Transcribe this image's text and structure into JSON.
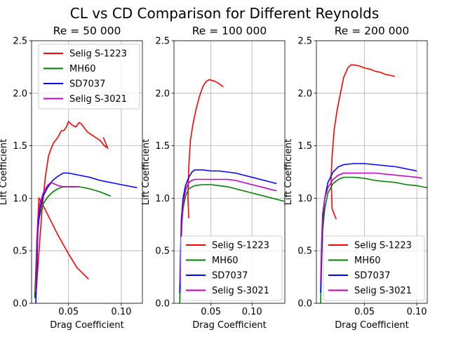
{
  "title": "CL vs CD Comparison for Different Reynolds",
  "colors": {
    "Selig S-1223": "#ff0000",
    "MH60": "#008000",
    "SD7037": "#0000ff",
    "Selig S-3021": "#bf00bf"
  },
  "chart_data": [
    {
      "type": "line",
      "title": "Re = 50 000",
      "xlabel": "Drag Coefficient",
      "ylabel": "Lift Coefficient",
      "xlim": [
        0.015,
        0.12
      ],
      "ylim": [
        0.0,
        2.5
      ],
      "xticks": [
        0.05,
        0.1
      ],
      "xtick_labels": [
        "0.05",
        "0.10"
      ],
      "yticks": [
        0.0,
        0.5,
        1.0,
        1.5,
        2.0,
        2.5
      ],
      "ytick_labels": [
        "0.0",
        "0.5",
        "1.0",
        "1.5",
        "2.0",
        "2.5"
      ],
      "grid": true,
      "legend_position": "top-right",
      "series": [
        {
          "name": "Selig S-1223",
          "x": [
            0.069,
            0.062,
            0.058,
            0.05,
            0.04,
            0.03,
            0.025,
            0.022,
            0.02,
            0.019,
            0.021,
            0.025,
            0.028,
            0.031,
            0.033,
            0.036,
            0.04,
            0.043,
            0.046,
            0.048,
            0.05,
            0.053,
            0.057,
            0.06,
            0.062,
            0.065,
            0.068,
            0.08,
            0.084,
            0.087,
            0.085,
            0.083
          ],
          "y": [
            0.23,
            0.3,
            0.34,
            0.47,
            0.65,
            0.85,
            0.95,
            1.0,
            0.6,
            0.05,
            0.35,
            0.9,
            1.2,
            1.4,
            1.46,
            1.53,
            1.58,
            1.64,
            1.65,
            1.68,
            1.73,
            1.7,
            1.68,
            1.72,
            1.71,
            1.67,
            1.63,
            1.55,
            1.5,
            1.48,
            1.53,
            1.58
          ]
        },
        {
          "name": "MH60",
          "x": [
            0.018,
            0.019,
            0.02,
            0.022,
            0.025,
            0.03,
            0.035,
            0.04,
            0.045,
            0.05,
            0.055,
            0.06,
            0.07,
            0.08,
            0.09
          ],
          "y": [
            0.05,
            0.3,
            0.6,
            0.8,
            0.93,
            1.01,
            1.06,
            1.09,
            1.11,
            1.11,
            1.11,
            1.11,
            1.09,
            1.06,
            1.02
          ]
        },
        {
          "name": "SD7037",
          "x": [
            0.019,
            0.02,
            0.021,
            0.023,
            0.026,
            0.03,
            0.035,
            0.04,
            0.045,
            0.05,
            0.06,
            0.07,
            0.08,
            0.09,
            0.1,
            0.115
          ],
          "y": [
            0.0,
            0.3,
            0.7,
            0.9,
            1.02,
            1.1,
            1.17,
            1.21,
            1.24,
            1.24,
            1.22,
            1.2,
            1.17,
            1.15,
            1.13,
            1.1
          ]
        },
        {
          "name": "Selig S-3021",
          "x": [
            0.019,
            0.02,
            0.021,
            0.023,
            0.026,
            0.03,
            0.033,
            0.036,
            0.04,
            0.045,
            0.05,
            0.055,
            0.06
          ],
          "y": [
            0.1,
            0.5,
            0.8,
            0.95,
            1.05,
            1.12,
            1.15,
            1.14,
            1.12,
            1.11,
            1.11,
            1.11,
            1.11
          ]
        }
      ]
    },
    {
      "type": "line",
      "title": "Re = 100 000",
      "xlabel": "Drag Coefficient",
      "ylabel": "Lift Coefficient",
      "xlim": [
        0.005,
        0.14
      ],
      "ylim": [
        0.0,
        2.5
      ],
      "xticks": [
        0.05,
        0.1
      ],
      "xtick_labels": [
        "0.05",
        "0.10"
      ],
      "yticks": [
        0.0,
        0.5,
        1.0,
        1.5,
        2.0,
        2.5
      ],
      "ytick_labels": [
        "0.0",
        "0.5",
        "1.0",
        "1.5",
        "2.0",
        "2.5"
      ],
      "grid": true,
      "legend_position": "bottom-right",
      "series": [
        {
          "name": "Selig S-1223",
          "x": [
            0.023,
            0.022,
            0.023,
            0.025,
            0.028,
            0.032,
            0.036,
            0.04,
            0.044,
            0.048,
            0.052,
            0.056,
            0.06,
            0.065
          ],
          "y": [
            0.81,
            1.0,
            1.3,
            1.55,
            1.7,
            1.85,
            1.97,
            2.06,
            2.11,
            2.13,
            2.12,
            2.11,
            2.09,
            2.06
          ]
        },
        {
          "name": "MH60",
          "x": [
            0.012,
            0.013,
            0.014,
            0.016,
            0.019,
            0.023,
            0.03,
            0.04,
            0.05,
            0.06,
            0.07,
            0.08,
            0.09,
            0.1,
            0.11,
            0.12,
            0.13,
            0.14
          ],
          "y": [
            0.0,
            0.4,
            0.7,
            0.9,
            1.02,
            1.09,
            1.12,
            1.13,
            1.13,
            1.12,
            1.11,
            1.09,
            1.07,
            1.05,
            1.03,
            1.01,
            0.99,
            0.97
          ]
        },
        {
          "name": "SD7037",
          "x": [
            0.012,
            0.013,
            0.014,
            0.016,
            0.019,
            0.023,
            0.027,
            0.03,
            0.04,
            0.05,
            0.06,
            0.07,
            0.08,
            0.09,
            0.1,
            0.11,
            0.12,
            0.13
          ],
          "y": [
            0.1,
            0.5,
            0.8,
            1.0,
            1.12,
            1.2,
            1.25,
            1.27,
            1.27,
            1.26,
            1.26,
            1.25,
            1.24,
            1.22,
            1.2,
            1.18,
            1.16,
            1.14
          ]
        },
        {
          "name": "Selig S-3021",
          "x": [
            0.013,
            0.014,
            0.015,
            0.017,
            0.02,
            0.023,
            0.027,
            0.03,
            0.04,
            0.05,
            0.06,
            0.07,
            0.08,
            0.09,
            0.1,
            0.11,
            0.12,
            0.13
          ],
          "y": [
            0.2,
            0.6,
            0.85,
            1.0,
            1.1,
            1.15,
            1.17,
            1.18,
            1.18,
            1.18,
            1.18,
            1.18,
            1.17,
            1.15,
            1.13,
            1.11,
            1.09,
            1.07
          ]
        }
      ]
    },
    {
      "type": "line",
      "title": "Re = 200 000",
      "xlabel": "Drag Coefficient",
      "ylabel": "Lift Coefficient",
      "xlim": [
        0.004,
        0.11
      ],
      "ylim": [
        0.0,
        2.5
      ],
      "xticks": [
        0.05,
        0.1
      ],
      "xtick_labels": [
        "0.05",
        "0.10"
      ],
      "yticks": [
        0.0,
        0.5,
        1.0,
        1.5,
        2.0,
        2.5
      ],
      "ytick_labels": [
        "0.0",
        "0.5",
        "1.0",
        "1.5",
        "2.0",
        "2.5"
      ],
      "grid": true,
      "legend_position": "bottom-right",
      "series": [
        {
          "name": "Selig S-1223",
          "x": [
            0.023,
            0.021,
            0.019,
            0.018,
            0.019,
            0.021,
            0.024,
            0.027,
            0.03,
            0.034,
            0.037,
            0.04,
            0.045,
            0.05,
            0.055,
            0.06,
            0.065,
            0.07,
            0.075,
            0.079
          ],
          "y": [
            0.8,
            0.85,
            0.9,
            1.2,
            1.4,
            1.65,
            1.85,
            2.0,
            2.15,
            2.24,
            2.27,
            2.27,
            2.26,
            2.24,
            2.23,
            2.21,
            2.2,
            2.18,
            2.17,
            2.16
          ]
        },
        {
          "name": "MH60",
          "x": [
            0.008,
            0.009,
            0.01,
            0.012,
            0.015,
            0.02,
            0.025,
            0.03,
            0.04,
            0.05,
            0.06,
            0.07,
            0.08,
            0.09,
            0.1,
            0.11
          ],
          "y": [
            0.0,
            0.4,
            0.7,
            0.9,
            1.05,
            1.14,
            1.18,
            1.2,
            1.2,
            1.19,
            1.17,
            1.16,
            1.15,
            1.13,
            1.12,
            1.1
          ]
        },
        {
          "name": "SD7037",
          "x": [
            0.008,
            0.009,
            0.01,
            0.012,
            0.015,
            0.02,
            0.025,
            0.03,
            0.04,
            0.05,
            0.06,
            0.07,
            0.08,
            0.09,
            0.1
          ],
          "y": [
            0.1,
            0.5,
            0.8,
            1.0,
            1.15,
            1.25,
            1.3,
            1.32,
            1.33,
            1.33,
            1.32,
            1.31,
            1.3,
            1.28,
            1.26
          ]
        },
        {
          "name": "Selig S-3021",
          "x": [
            0.008,
            0.009,
            0.01,
            0.012,
            0.015,
            0.02,
            0.025,
            0.03,
            0.04,
            0.05,
            0.06,
            0.07,
            0.08,
            0.09,
            0.1,
            0.105
          ],
          "y": [
            0.2,
            0.6,
            0.85,
            1.0,
            1.1,
            1.18,
            1.22,
            1.24,
            1.24,
            1.24,
            1.24,
            1.23,
            1.22,
            1.21,
            1.2,
            1.19
          ]
        }
      ]
    }
  ]
}
